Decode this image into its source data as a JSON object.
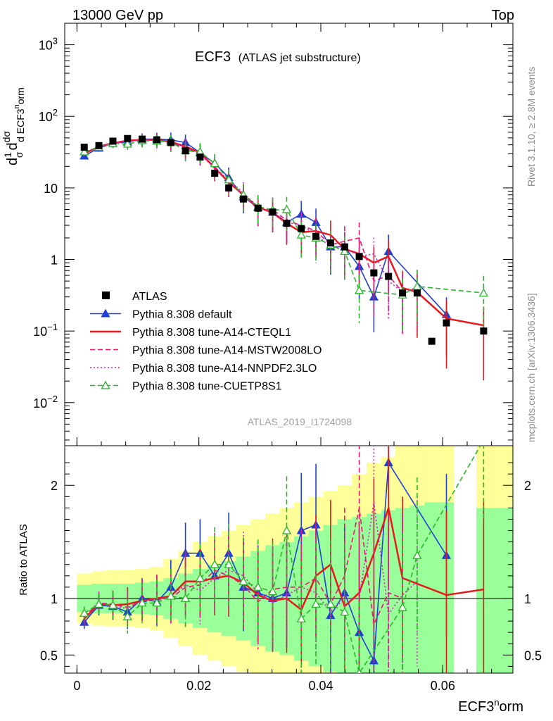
{
  "header": {
    "left": "13000 GeV pp",
    "right": "Top"
  },
  "chart_data": [
    {
      "type": "line",
      "title": "ECF3",
      "subtitle": "(ATLAS jet substructure)",
      "xlabel": "ECF3^norm",
      "ylabel": "1/σ dσ/d ECF3^norm",
      "yscale": "log",
      "xlim": [
        -0.002,
        0.0715
      ],
      "ylim": [
        0.0025,
        2000
      ],
      "y_ticks": [
        {
          "value": 1000,
          "label": "10^3"
        },
        {
          "value": 100,
          "label": "10^2"
        },
        {
          "value": 10,
          "label": "10"
        },
        {
          "value": 1,
          "label": "1"
        },
        {
          "value": 0.1,
          "label": "10^-1"
        },
        {
          "value": 0.01,
          "label": "10^-2"
        }
      ],
      "x_ticks": [
        0,
        0.02,
        0.04,
        0.06
      ],
      "x_tick_labels": [
        "0",
        "0.02",
        "0.04",
        "0.06"
      ],
      "watermark": "ATLAS_2019_I1724098",
      "side_labels": [
        "Rivet 3.1.10, ≥ 2.8M events",
        "mcplots.cern.ch [arXiv:1306.3436]"
      ],
      "legend_position": "bottom-left",
      "data": {
        "name": "ATLAS",
        "color": "#000000",
        "x": [
          0.0012,
          0.0036,
          0.0059,
          0.0083,
          0.0107,
          0.0131,
          0.0154,
          0.0178,
          0.0202,
          0.0226,
          0.0249,
          0.0273,
          0.0297,
          0.0321,
          0.0344,
          0.0368,
          0.0392,
          0.0416,
          0.0439,
          0.0463,
          0.0487,
          0.0511,
          0.0534,
          0.0558,
          0.0582,
          0.0606,
          0.0667
        ],
        "y": [
          37,
          39,
          45,
          49,
          48,
          47,
          43,
          33,
          27,
          16,
          10,
          7,
          5.2,
          4.6,
          3.2,
          2.7,
          2.1,
          1.7,
          1.5,
          1.1,
          0.65,
          0.58,
          0.34,
          0.34,
          0.072,
          0.13,
          0.1
        ]
      },
      "series": [
        {
          "name": "Pythia 8.308 default",
          "color": "#1f3fd6",
          "dash": "solid",
          "marker": "triangle",
          "x": [
            0.0012,
            0.0036,
            0.0059,
            0.0083,
            0.0107,
            0.0131,
            0.0154,
            0.0178,
            0.0202,
            0.0226,
            0.0249,
            0.0273,
            0.0297,
            0.0321,
            0.0344,
            0.0368,
            0.0392,
            0.0416,
            0.0439,
            0.0463,
            0.0487,
            0.0511,
            0.0606
          ],
          "y": [
            28,
            36,
            42,
            44,
            48,
            48,
            47,
            43,
            31,
            22,
            14,
            7.5,
            5.3,
            4.6,
            3.3,
            4.3,
            3.3,
            1.5,
            1.5,
            0.8,
            0.3,
            1.3,
            0.17
          ]
        },
        {
          "name": "Pythia 8.308 tune-A14-CTEQL1",
          "color": "#e8191d",
          "dash": "solid",
          "marker": "none",
          "x": [
            0.0012,
            0.0036,
            0.0059,
            0.0083,
            0.0107,
            0.0131,
            0.0154,
            0.0178,
            0.0202,
            0.0226,
            0.0249,
            0.0273,
            0.0297,
            0.0321,
            0.0344,
            0.0368,
            0.0392,
            0.0416,
            0.0439,
            0.0463,
            0.0487,
            0.0511,
            0.0534,
            0.0558,
            0.0606,
            0.0667
          ],
          "y": [
            30,
            38,
            42,
            46,
            47,
            47,
            44,
            38,
            31,
            19,
            12,
            8,
            5.4,
            4.5,
            3.2,
            2.4,
            2.5,
            2.2,
            1.4,
            1.2,
            0.9,
            1.1,
            0.4,
            0.35,
            0.15,
            0.12
          ]
        },
        {
          "name": "Pythia 8.308 tune-A14-MSTW2008LO",
          "color": "#e8196e",
          "dash": "dashed",
          "marker": "none",
          "x": [
            0.0012,
            0.0036,
            0.0059,
            0.0083,
            0.0107,
            0.0131,
            0.0154,
            0.0178,
            0.0202,
            0.0226,
            0.0249,
            0.0273,
            0.0297,
            0.0321,
            0.0344,
            0.0368,
            0.0392,
            0.0416,
            0.0439,
            0.0463,
            0.0487,
            0.0511,
            0.0534
          ],
          "y": [
            31,
            38,
            43,
            45,
            47,
            47,
            43,
            36,
            30,
            20,
            12,
            8,
            5,
            5,
            3.5,
            3,
            2.5,
            1.6,
            1.8,
            2,
            0.5,
            0.6,
            0.35
          ]
        },
        {
          "name": "Pythia 8.308 tune-A14-NNPDF2.3LO",
          "color": "#d81bc1",
          "dash": "dotted",
          "marker": "none",
          "x": [
            0.0012,
            0.0036,
            0.0059,
            0.0083,
            0.0107,
            0.0131,
            0.0154,
            0.0178,
            0.0202,
            0.0226,
            0.0249,
            0.0273,
            0.0297,
            0.0321,
            0.0344,
            0.0368,
            0.0392,
            0.0416,
            0.0439,
            0.0463,
            0.0487,
            0.0511,
            0.0534,
            0.0558
          ],
          "y": [
            31,
            38,
            42,
            45,
            47,
            46,
            44,
            37,
            29,
            19,
            13,
            8.5,
            5.5,
            4.4,
            3.3,
            3,
            2.2,
            1.5,
            1.5,
            1.1,
            1.2,
            0.5,
            0.35,
            0.4
          ]
        },
        {
          "name": "Pythia 8.308 tune-CUETP8S1",
          "color": "#2ab52a",
          "dash": "dashed",
          "marker": "open-triangle",
          "x": [
            0.0012,
            0.0036,
            0.0059,
            0.0083,
            0.0107,
            0.0131,
            0.0154,
            0.0178,
            0.0202,
            0.0226,
            0.0249,
            0.0273,
            0.0297,
            0.0321,
            0.0344,
            0.0368,
            0.0392,
            0.0416,
            0.0439,
            0.0463,
            0.0534,
            0.0558,
            0.0667
          ],
          "y": [
            32,
            37,
            42,
            41,
            46,
            45,
            44,
            33,
            32,
            22,
            13,
            8,
            5.5,
            4.9,
            5,
            2.2,
            2,
            1.6,
            1.3,
            0.37,
            0.32,
            0.42,
            0.34
          ]
        }
      ]
    },
    {
      "type": "line",
      "ylabel": "Ratio to ATLAS",
      "xlabel": "ECF3^norm",
      "xlim": [
        -0.002,
        0.0715
      ],
      "ylim": [
        0.34,
        2.35
      ],
      "y_ticks": [
        0.5,
        1,
        2
      ],
      "y_tick_labels": [
        "0.5",
        "1",
        "2"
      ],
      "reference_line": 1,
      "bands": {
        "yellow_halfwidth": [
          0.22,
          0.24,
          0.25,
          0.25,
          0.26,
          0.28,
          0.35,
          0.42,
          0.5,
          0.55,
          0.6,
          0.65,
          0.7,
          0.75,
          0.8,
          0.85,
          0.9,
          0.95,
          1,
          1.1,
          1.2,
          1.25,
          1.35,
          1.4,
          1.5,
          1.55,
          1.6
        ],
        "green_halfwidth": [
          0.12,
          0.13,
          0.13,
          0.13,
          0.14,
          0.15,
          0.18,
          0.22,
          0.26,
          0.3,
          0.33,
          0.37,
          0.42,
          0.47,
          0.5,
          0.55,
          0.6,
          0.65,
          0.7,
          0.72,
          0.75,
          0.78,
          0.8,
          0.82,
          0.85,
          0.85,
          0.8
        ]
      },
      "series": [
        {
          "name": "Pythia 8.308 default",
          "x": [
            0.0012,
            0.0036,
            0.0059,
            0.0083,
            0.0107,
            0.0131,
            0.0154,
            0.0178,
            0.0202,
            0.0226,
            0.0249,
            0.0273,
            0.0297,
            0.0321,
            0.0344,
            0.0368,
            0.0392,
            0.0416,
            0.0439,
            0.0463,
            0.0487,
            0.0511,
            0.0606
          ],
          "y": [
            0.79,
            0.94,
            0.93,
            0.88,
            1.0,
            0.97,
            1.1,
            1.4,
            1.4,
            1.2,
            1.4,
            1.1,
            1.05,
            1.0,
            1.05,
            1.6,
            1.65,
            0.85,
            1.05,
            0.7,
            0.45,
            2.2,
            1.38
          ]
        },
        {
          "name": "Pythia 8.308 tune-A14-CTEQL1",
          "x": [
            0.0012,
            0.0036,
            0.0059,
            0.0083,
            0.0107,
            0.0131,
            0.0154,
            0.0178,
            0.0202,
            0.0226,
            0.0249,
            0.0273,
            0.0297,
            0.0321,
            0.0344,
            0.0368,
            0.0392,
            0.0416,
            0.0439,
            0.0463,
            0.0487,
            0.0511,
            0.0534,
            0.0606,
            0.0667
          ],
          "y": [
            0.82,
            0.95,
            0.94,
            0.95,
            0.98,
            1.0,
            1.02,
            1.15,
            1.15,
            1.18,
            1.2,
            1.14,
            1.03,
            0.98,
            1.0,
            0.9,
            1.2,
            1.3,
            0.93,
            1.05,
            1.4,
            1.8,
            1.18,
            1.03,
            1.08
          ]
        },
        {
          "name": "Pythia 8.308 tune-A14-MSTW2008LO",
          "x": [
            0.0012,
            0.0036,
            0.0059,
            0.0083,
            0.0107,
            0.0131,
            0.0154,
            0.0178,
            0.0202,
            0.0226,
            0.0249,
            0.0273,
            0.0297,
            0.0321,
            0.0344,
            0.0368,
            0.0392,
            0.0416,
            0.0439,
            0.0463,
            0.0487,
            0.0511,
            0.0534
          ],
          "y": [
            0.84,
            0.96,
            0.95,
            0.92,
            0.98,
            1.0,
            1.0,
            1.1,
            1.12,
            1.25,
            1.2,
            1.12,
            0.97,
            1.08,
            1.1,
            1.1,
            1.18,
            0.95,
            1.2,
            1.8,
            0.77,
            1.05,
            1.0
          ]
        },
        {
          "name": "Pythia 8.308 tune-A14-NNPDF2.3LO",
          "x": [
            0.0012,
            0.0036,
            0.0059,
            0.0083,
            0.0107,
            0.0131,
            0.0154,
            0.0178,
            0.0202,
            0.0226,
            0.0249,
            0.0273,
            0.0297,
            0.0321,
            0.0344,
            0.0368,
            0.0392,
            0.0416,
            0.0439,
            0.0463,
            0.0487,
            0.0511,
            0.0534,
            0.0558
          ],
          "y": [
            0.84,
            0.97,
            0.93,
            0.91,
            0.98,
            0.98,
            1.02,
            1.12,
            1.07,
            1.18,
            1.25,
            1.2,
            1.05,
            0.96,
            1.03,
            1.1,
            1.05,
            0.88,
            1.0,
            1.0,
            1.85,
            0.86,
            1.03,
            1.15
          ]
        },
        {
          "name": "Pythia 8.308 tune-CUETP8S1",
          "x": [
            0.0012,
            0.0036,
            0.0059,
            0.0083,
            0.0107,
            0.0131,
            0.0154,
            0.0178,
            0.0202,
            0.0226,
            0.0249,
            0.0273,
            0.0297,
            0.0321,
            0.0344,
            0.0368,
            0.0392,
            0.0416,
            0.0439,
            0.0463,
            0.0534,
            0.0558,
            0.0667
          ],
          "y": [
            0.87,
            0.95,
            0.94,
            0.84,
            0.96,
            0.96,
            1.02,
            1.0,
            1.18,
            1.3,
            1.3,
            1.15,
            1.1,
            1.06,
            1.6,
            0.82,
            0.95,
            0.95,
            0.88,
            0.34,
            0.92,
            1.38,
            2.4
          ]
        }
      ]
    }
  ]
}
